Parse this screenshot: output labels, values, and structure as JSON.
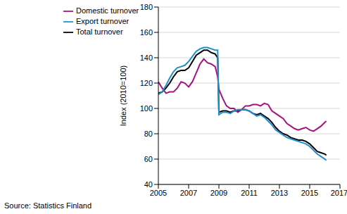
{
  "chart_data": {
    "type": "line",
    "y_label": "Index (2010=100)",
    "source": "Source: Statistics Finland",
    "x": [
      2005,
      2005.25,
      2005.5,
      2005.75,
      2006,
      2006.25,
      2006.5,
      2006.75,
      2007,
      2007.25,
      2007.5,
      2007.75,
      2008,
      2008.25,
      2008.5,
      2008.75,
      2008.92,
      2009,
      2009.25,
      2009.5,
      2009.75,
      2010,
      2010.25,
      2010.5,
      2010.75,
      2011,
      2011.25,
      2011.5,
      2011.75,
      2012,
      2012.25,
      2012.5,
      2012.75,
      2013,
      2013.25,
      2013.5,
      2013.75,
      2014,
      2014.25,
      2014.5,
      2014.75,
      2015,
      2015.25,
      2015.5,
      2015.75,
      2016,
      2016.1
    ],
    "series": [
      {
        "name": "Total turnover",
        "color": "#000000",
        "values": [
          112,
          113,
          116,
          120,
          125,
          129,
          130,
          130,
          132,
          137,
          142,
          144,
          146,
          146,
          144,
          143,
          140,
          97,
          98,
          98,
          97,
          98,
          98,
          99,
          99,
          98,
          96,
          95,
          96,
          94,
          92,
          89,
          85,
          82,
          80,
          79,
          77,
          76,
          75,
          75,
          74,
          72,
          69,
          66,
          65,
          64,
          63
        ]
      },
      {
        "name": "Domestic turnover",
        "color": "#a8117f",
        "values": [
          121,
          116,
          112,
          113,
          113,
          116,
          121,
          120,
          117,
          121,
          128,
          135,
          139,
          136,
          135,
          133,
          125,
          115,
          108,
          102,
          100,
          100,
          97,
          99,
          102,
          102,
          103,
          103,
          102,
          104,
          103,
          98,
          96,
          94,
          92,
          88,
          86,
          84,
          83,
          84,
          85,
          83,
          82,
          84,
          86,
          89,
          90
        ]
      },
      {
        "name": "Export turnover",
        "color": "#1f8fcc",
        "values": [
          111,
          113,
          118,
          124,
          129,
          132,
          133,
          134,
          137,
          141,
          145,
          147,
          148,
          148,
          147,
          146,
          146,
          95,
          97,
          97,
          96,
          98,
          99,
          99,
          99,
          98,
          96,
          94,
          95,
          93,
          90,
          87,
          83,
          81,
          79,
          77,
          76,
          75,
          74,
          73,
          72,
          70,
          67,
          64,
          62,
          60,
          59
        ]
      }
    ],
    "xlim": [
      2005,
      2017
    ],
    "xticks": [
      2005,
      2007,
      2009,
      2011,
      2013,
      2015,
      2017
    ],
    "ylim": [
      40,
      180
    ],
    "yticks": [
      40,
      60,
      80,
      100,
      120,
      140,
      160,
      180
    ],
    "grid": true,
    "legend": "upper left"
  }
}
